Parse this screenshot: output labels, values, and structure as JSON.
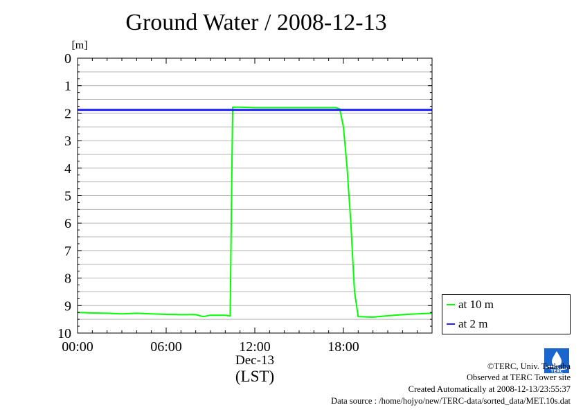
{
  "chart_data": {
    "type": "line",
    "title": "Ground Water / 2008-12-13",
    "ylabel": "[m]",
    "xlabel": "(LST)",
    "x_date_label": "Dec-13",
    "ylim": [
      0,
      10
    ],
    "y_inverted": true,
    "y_ticks": [
      "0",
      "1",
      "2",
      "3",
      "4",
      "5",
      "6",
      "7",
      "8",
      "9",
      "10"
    ],
    "x_range": [
      "00:00",
      "24:00"
    ],
    "x_ticks": [
      "00:00",
      "06:00",
      "12:00",
      "18:00"
    ],
    "grid": true,
    "legend_position": "bottom-right-outside",
    "series": [
      {
        "name": "at 10 m",
        "color": "#00ff00",
        "x": [
          "00:00",
          "01:00",
          "02:00",
          "03:00",
          "04:00",
          "05:00",
          "06:00",
          "07:00",
          "08:00",
          "08:30",
          "09:00",
          "10:00",
          "10:20",
          "10:30",
          "11:00",
          "12:00",
          "13:00",
          "14:00",
          "15:00",
          "16:00",
          "17:00",
          "17:30",
          "17:45",
          "18:00",
          "18:15",
          "18:30",
          "18:45",
          "19:00",
          "20:00",
          "21:00",
          "22:00",
          "23:00",
          "24:00"
        ],
        "y": [
          9.25,
          9.27,
          9.28,
          9.3,
          9.28,
          9.3,
          9.32,
          9.33,
          9.33,
          9.4,
          9.35,
          9.35,
          9.38,
          1.78,
          1.78,
          1.8,
          1.8,
          1.8,
          1.8,
          1.8,
          1.8,
          1.8,
          1.85,
          2.5,
          4.0,
          6.0,
          8.5,
          9.4,
          9.42,
          9.37,
          9.33,
          9.3,
          9.28
        ]
      },
      {
        "name": "at 2 m",
        "color": "#2222ff",
        "x": [
          "00:00",
          "24:00"
        ],
        "y": [
          1.88,
          1.88
        ]
      }
    ]
  },
  "footer": {
    "copyright": "©TERC, Univ. Tsukuba",
    "observed": "Observed at TERC Tower site",
    "created": "Created Automatically at 2008-12-13/23:55:37",
    "source": "Data source : /home/hojyo/new/TERC-data/sorted_data/MET.10s.dat"
  },
  "logo_text": "TERC"
}
